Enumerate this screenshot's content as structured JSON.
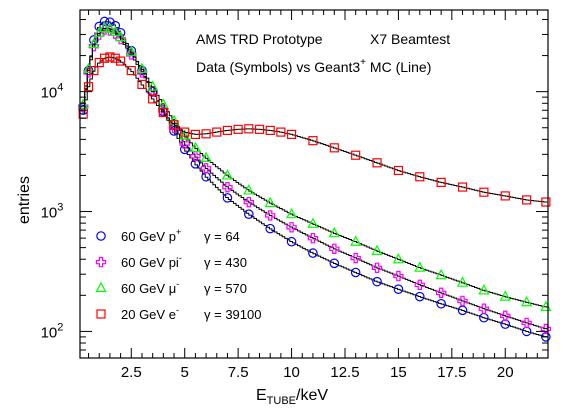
{
  "chart_data": {
    "type": "scatter",
    "title_line1_left": "AMS TRD Prototype",
    "title_line1_right": "X7 Beamtest",
    "title_line2": "Data (Symbols)  vs Geant3",
    "title_line2_sup": "+",
    "title_line2_tail": " MC (Line)",
    "xlabel": "E",
    "xlabel_sub": "TUBE",
    "xlabel_tail": "/keV",
    "ylabel": "entries",
    "xlim": [
      0.1,
      22
    ],
    "ylim": [
      60,
      48000
    ],
    "ylog": true,
    "x_ticks": [
      {
        "value": 2.5,
        "label": "2.5"
      },
      {
        "value": 5,
        "label": "5"
      },
      {
        "value": 7.5,
        "label": "7.5"
      },
      {
        "value": 10,
        "label": "10"
      },
      {
        "value": 12.5,
        "label": "12.5"
      },
      {
        "value": 15,
        "label": "15"
      },
      {
        "value": 17.5,
        "label": "17.5"
      },
      {
        "value": 20,
        "label": "20"
      }
    ],
    "y_ticks": [
      {
        "value": 100,
        "base": "10",
        "exp": "2"
      },
      {
        "value": 1000,
        "base": "10",
        "exp": "3"
      },
      {
        "value": 10000,
        "base": "10",
        "exp": "4"
      }
    ],
    "legend_position": "bottom-left",
    "series": [
      {
        "id": "p",
        "name": "60 GeV p",
        "sup": "+",
        "gamma": "γ = 64",
        "color": "#0000ff",
        "marker": "circle",
        "x": [
          0.25,
          0.5,
          0.75,
          1.0,
          1.25,
          1.5,
          1.75,
          2.0,
          2.5,
          3.0,
          3.5,
          4.0,
          4.5,
          5.0,
          5.5,
          6.0,
          7.0,
          8.0,
          9.0,
          10.0,
          11.0,
          12.0,
          13.0,
          14.0,
          15.0,
          16.0,
          17.0,
          18.0,
          19.0,
          20.0,
          21.0,
          21.9
        ],
        "y": [
          7000,
          15000,
          27000,
          35000,
          38500,
          38000,
          35500,
          31000,
          22000,
          15000,
          10000,
          6800,
          4700,
          3300,
          2500,
          1950,
          1300,
          950,
          720,
          560,
          450,
          370,
          310,
          260,
          225,
          195,
          170,
          150,
          130,
          115,
          100,
          90
        ]
      },
      {
        "id": "pi",
        "name": "60 GeV pi",
        "sup": "-",
        "gamma": "γ = 430",
        "color": "#ff00ff",
        "marker": "cross",
        "x": [
          0.25,
          0.5,
          0.75,
          1.0,
          1.25,
          1.5,
          1.75,
          2.0,
          2.5,
          3.0,
          3.5,
          4.0,
          4.5,
          5.0,
          5.5,
          6.0,
          7.0,
          8.0,
          9.0,
          10.0,
          11.0,
          12.0,
          13.0,
          14.0,
          15.0,
          16.0,
          17.0,
          18.0,
          19.0,
          20.0,
          21.0,
          21.9
        ],
        "y": [
          7500,
          14500,
          24000,
          30000,
          33000,
          32500,
          30500,
          27500,
          20500,
          14500,
          10000,
          7000,
          5000,
          3700,
          2900,
          2300,
          1600,
          1200,
          930,
          740,
          600,
          490,
          410,
          340,
          290,
          245,
          210,
          180,
          155,
          135,
          118,
          105
        ]
      },
      {
        "id": "mu",
        "name": "60 GeV μ",
        "sup": "-",
        "gamma": "γ = 570",
        "color": "#00ff00",
        "marker": "triangle",
        "x": [
          0.25,
          0.5,
          0.75,
          1.0,
          1.25,
          1.5,
          1.75,
          2.0,
          2.5,
          3.0,
          3.5,
          4.0,
          4.5,
          5.0,
          5.5,
          6.0,
          7.0,
          8.0,
          9.0,
          10.0,
          11.0,
          12.0,
          13.0,
          14.0,
          15.0,
          16.0,
          17.0,
          18.0,
          19.0,
          20.0,
          21.0,
          21.9
        ],
        "y": [
          7800,
          15500,
          25000,
          31000,
          34000,
          33500,
          31500,
          28500,
          21500,
          15500,
          11000,
          7800,
          5700,
          4300,
          3400,
          2800,
          2000,
          1500,
          1180,
          950,
          790,
          660,
          560,
          470,
          400,
          340,
          295,
          255,
          220,
          195,
          175,
          160
        ]
      },
      {
        "id": "e",
        "name": "20 GeV e",
        "sup": "-",
        "gamma": "γ = 39100",
        "color": "#ff0000",
        "marker": "square",
        "x": [
          0.25,
          0.5,
          0.75,
          1.0,
          1.25,
          1.5,
          1.75,
          2.0,
          2.5,
          3.0,
          3.5,
          4.0,
          4.5,
          5.0,
          5.5,
          6.0,
          6.5,
          7.0,
          7.5,
          8.0,
          8.5,
          9.0,
          9.5,
          10.0,
          11.0,
          12.0,
          13.0,
          14.0,
          15.0,
          16.0,
          17.0,
          18.0,
          19.0,
          20.0,
          21.0,
          21.9
        ],
        "y": [
          6500,
          11000,
          15000,
          17500,
          19000,
          19500,
          19000,
          18000,
          15000,
          11500,
          8700,
          6700,
          5300,
          4600,
          4400,
          4450,
          4600,
          4750,
          4850,
          4900,
          4850,
          4750,
          4600,
          4400,
          3900,
          3400,
          2950,
          2550,
          2200,
          1950,
          1750,
          1600,
          1450,
          1350,
          1250,
          1200
        ]
      }
    ]
  }
}
